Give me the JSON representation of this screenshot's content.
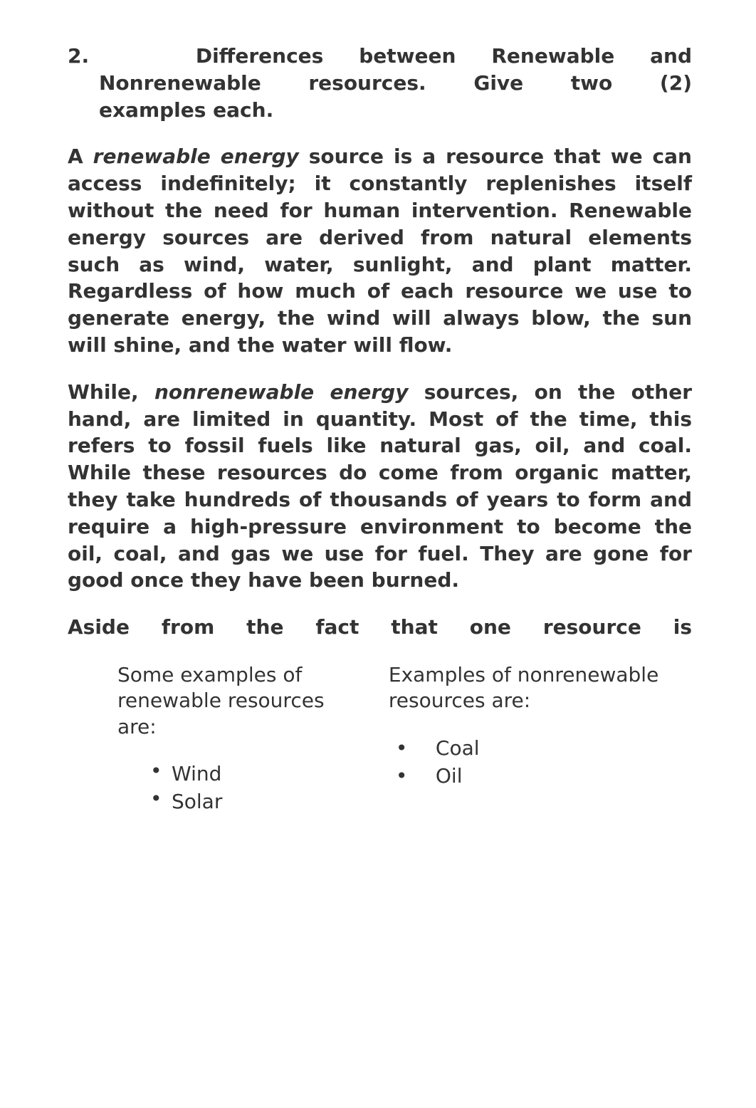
{
  "question": {
    "number": "2.",
    "line1": "Differences between Renewable and",
    "line2": "Nonrenewable resources. Give two (2)",
    "line3": "examples each."
  },
  "para1": {
    "prefix": "A ",
    "term": "renewable energy",
    "rest": " source is a resource that we can access indefinitely; it constantly replenishes itself without the need for human intervention. Renewable energy sources are derived from natural elements such as wind, water, sunlight, and plant matter. Regardless of how much of each resource we use to generate energy, the wind will always blow, the sun will shine, and the water will flow."
  },
  "para2": {
    "prefix": "While, ",
    "term": "nonrenewable energy",
    "rest": " sources, on the other hand, are limited in quantity. Most of the time, this refers to fossil fuels like natural gas, oil, and coal. While these resources do come from organic matter, they take hundreds of thousands of years to form and require a high-pressure environment to become the oil, coal, and gas we use for fuel. They are gone for good once they have been burned."
  },
  "aside": "Aside from the fact that one resource is",
  "examples": {
    "left": {
      "intro": "Some examples of renewable resources are:",
      "items": [
        "Wind",
        "Solar"
      ]
    },
    "right": {
      "intro": "Examples of nonrenewable resources are:",
      "items": [
        "Coal",
        "Oil"
      ]
    }
  },
  "colors": {
    "background": "#ffffff",
    "text": "#333333"
  },
  "typography": {
    "body_fontsize": 28,
    "body_weight_bold": 700,
    "body_weight_regular": 400
  }
}
